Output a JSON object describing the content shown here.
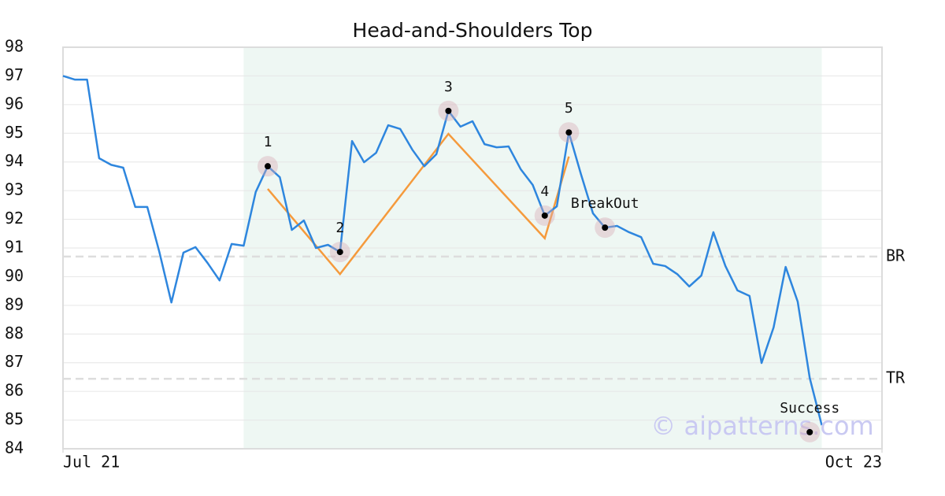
{
  "chart_data": {
    "type": "line",
    "title": "Head-and-Shoulders Top",
    "x": [
      0,
      1,
      2,
      3,
      4,
      5,
      6,
      7,
      8,
      9,
      10,
      11,
      12,
      13,
      14,
      15,
      16,
      17,
      18,
      19,
      20,
      21,
      22,
      23,
      24,
      25,
      26,
      27,
      28,
      29,
      30,
      31,
      32,
      33,
      34,
      35,
      36,
      37,
      38,
      39,
      40,
      41,
      42,
      43,
      44,
      45,
      46,
      47,
      48,
      49,
      50,
      51,
      52,
      53,
      54,
      55,
      56,
      57,
      58,
      59,
      60,
      61,
      62,
      63
    ],
    "xlim": [
      0,
      68
    ],
    "xticks": [
      {
        "value": 0,
        "label": "Jul 21"
      },
      {
        "value": 68,
        "label": "Oct 23"
      }
    ],
    "ylim": [
      84,
      98
    ],
    "yticks": [
      84,
      85,
      86,
      87,
      88,
      89,
      90,
      91,
      92,
      93,
      94,
      95,
      96,
      97,
      98
    ],
    "grid": true,
    "series": [
      {
        "color": "#2e86de",
        "values": [
          97.0,
          96.87,
          96.87,
          94.13,
          93.9,
          93.8,
          92.43,
          92.43,
          90.86,
          89.1,
          90.84,
          91.03,
          90.48,
          89.87,
          91.14,
          91.08,
          92.95,
          93.85,
          93.47,
          91.63,
          91.96,
          91.0,
          91.11,
          90.86,
          94.73,
          93.99,
          94.32,
          95.28,
          95.15,
          94.43,
          93.85,
          94.27,
          95.78,
          95.23,
          95.42,
          94.62,
          94.51,
          94.54,
          93.75,
          93.2,
          92.13,
          92.45,
          95.03,
          93.58,
          92.21,
          91.71,
          91.77,
          91.55,
          91.38,
          90.45,
          90.37,
          90.09,
          89.66,
          90.04,
          91.55,
          90.37,
          89.52,
          89.33,
          86.99,
          88.23,
          90.34,
          89.13,
          86.47,
          84.82
        ]
      }
    ],
    "pattern": {
      "color": "#f59a3c",
      "x": [
        17,
        23,
        32,
        40,
        42
      ],
      "values": [
        93.06,
        90.09,
        94.98,
        91.34,
        94.19
      ]
    },
    "shade": {
      "color": "#eef7f3",
      "x": [
        15,
        63
      ]
    },
    "points": [
      {
        "label": "1",
        "x": 17,
        "value": 93.85
      },
      {
        "label": "2",
        "x": 23,
        "value": 90.86
      },
      {
        "label": "3",
        "x": 32,
        "value": 95.78
      },
      {
        "label": "4",
        "x": 40,
        "value": 92.13
      },
      {
        "label": "5",
        "x": 42,
        "value": 95.03
      },
      {
        "label": "BreakOut",
        "x": 45,
        "value": 91.71
      },
      {
        "label": "Success",
        "x": 62,
        "value": 84.58
      }
    ],
    "levels": [
      {
        "label": "BR",
        "value": 90.7
      },
      {
        "label": "TR",
        "value": 86.44
      }
    ],
    "watermark": "© aipatterns.com"
  }
}
